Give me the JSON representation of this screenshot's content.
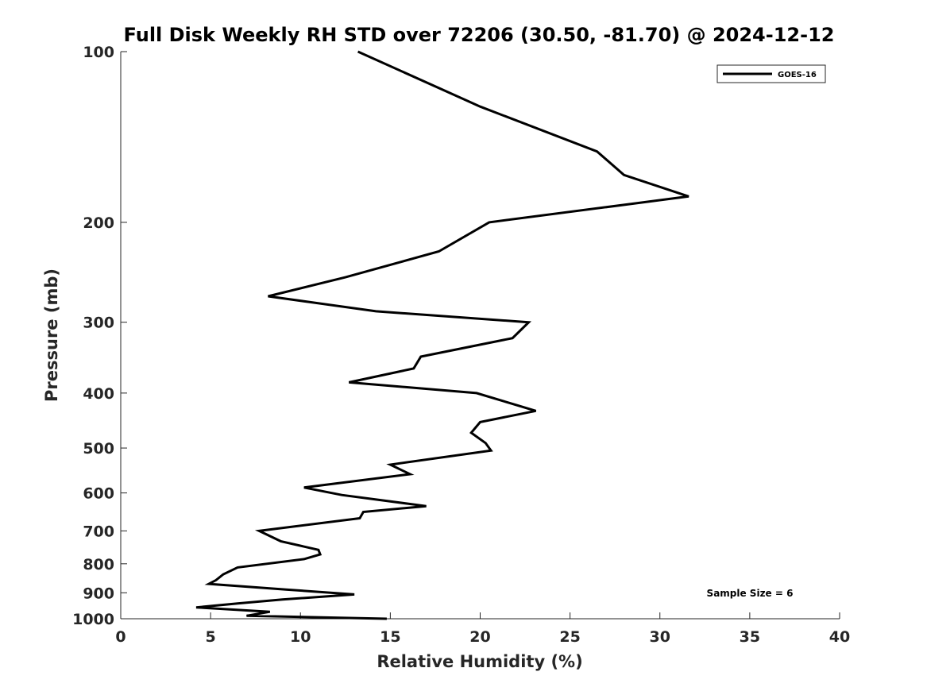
{
  "chart_data": {
    "type": "line",
    "title": "Full Disk Weekly RH STD over 72206 (30.50, -81.70) @ 2024-12-12",
    "xlabel": "Relative Humidity (%)",
    "ylabel": "Pressure (mb)",
    "xlim": [
      0,
      40
    ],
    "ylim": [
      100,
      1000
    ],
    "y_scale": "log",
    "y_reversed": true,
    "x_ticks": [
      0,
      5,
      10,
      15,
      20,
      25,
      30,
      35,
      40
    ],
    "y_ticks": [
      100,
      200,
      300,
      400,
      500,
      600,
      700,
      800,
      900,
      1000
    ],
    "grid": false,
    "legend_position": "top-right",
    "annotation": "Sample Size = 6",
    "series": [
      {
        "name": "GOES-16",
        "color": "#000000",
        "points": [
          [
            13.2,
            100
          ],
          [
            20.0,
            125
          ],
          [
            26.5,
            150
          ],
          [
            28.0,
            165
          ],
          [
            31.6,
            180
          ],
          [
            20.5,
            200
          ],
          [
            17.7,
            225
          ],
          [
            12.5,
            250
          ],
          [
            8.2,
            270
          ],
          [
            14.2,
            287
          ],
          [
            22.7,
            300
          ],
          [
            21.8,
            320
          ],
          [
            16.7,
            345
          ],
          [
            16.3,
            362
          ],
          [
            12.7,
            383
          ],
          [
            19.8,
            400
          ],
          [
            23.1,
            430
          ],
          [
            20.0,
            450
          ],
          [
            19.5,
            470
          ],
          [
            20.3,
            490
          ],
          [
            20.6,
            505
          ],
          [
            15.0,
            535
          ],
          [
            16.1,
            556
          ],
          [
            10.2,
            587
          ],
          [
            12.3,
            605
          ],
          [
            17.0,
            633
          ],
          [
            13.5,
            648
          ],
          [
            13.3,
            665
          ],
          [
            7.7,
            700
          ],
          [
            8.9,
            730
          ],
          [
            11.0,
            756
          ],
          [
            11.1,
            770
          ],
          [
            10.2,
            785
          ],
          [
            6.5,
            812
          ],
          [
            5.7,
            835
          ],
          [
            5.3,
            855
          ],
          [
            4.9,
            868
          ],
          [
            9.2,
            888
          ],
          [
            13.0,
            906
          ],
          [
            9.0,
            925
          ],
          [
            6.5,
            940
          ],
          [
            4.2,
            955
          ],
          [
            8.3,
            972
          ],
          [
            7.0,
            988
          ],
          [
            14.8,
            1000
          ]
        ]
      }
    ]
  }
}
